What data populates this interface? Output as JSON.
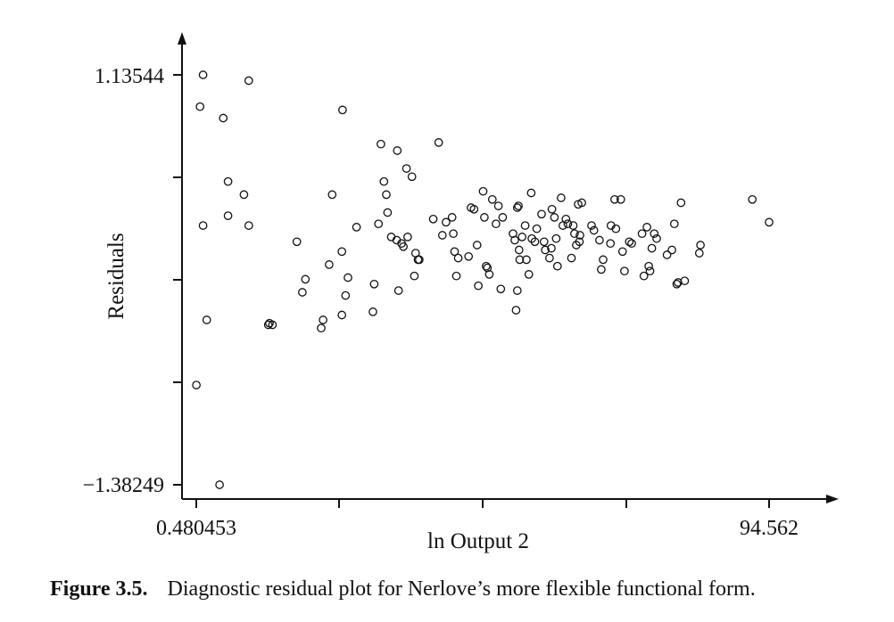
{
  "chart_data": {
    "type": "scatter",
    "xlabel": "ln Output 2",
    "ylabel": "Residuals",
    "x_tick_labels": [
      "0.480453",
      "94.562"
    ],
    "y_tick_labels": [
      "1.13544",
      "−1.38249"
    ],
    "xlim": [
      0.480453,
      94.562
    ],
    "ylim": [
      -1.38249,
      1.13544
    ],
    "marker": "open-circle",
    "marker_color": "#111111",
    "grid": false,
    "legend": "none",
    "points": [
      [
        0.5,
        -0.77
      ],
      [
        1.1,
        0.94
      ],
      [
        1.6,
        1.13544
      ],
      [
        1.6,
        0.21
      ],
      [
        2.2,
        -0.37
      ],
      [
        4.3,
        -1.38249
      ],
      [
        4.9,
        0.87
      ],
      [
        5.7,
        0.48
      ],
      [
        5.7,
        0.27
      ],
      [
        8.3,
        0.4
      ],
      [
        9.1,
        0.21
      ],
      [
        9.1,
        1.1
      ],
      [
        12.3,
        -0.4
      ],
      [
        12.5,
        -0.39
      ],
      [
        13.0,
        -0.4
      ],
      [
        17.0,
        0.11
      ],
      [
        17.9,
        -0.2
      ],
      [
        18.4,
        -0.12
      ],
      [
        21.0,
        -0.42
      ],
      [
        21.3,
        -0.37
      ],
      [
        22.3,
        -0.03
      ],
      [
        22.8,
        0.4
      ],
      [
        24.5,
        0.92
      ],
      [
        24.4,
        0.05
      ],
      [
        24.4,
        -0.34
      ],
      [
        25.0,
        -0.22
      ],
      [
        25.4,
        -0.11
      ],
      [
        26.8,
        0.2
      ],
      [
        29.5,
        -0.32
      ],
      [
        29.7,
        -0.15
      ],
      [
        30.4,
        0.22
      ],
      [
        30.8,
        0.71
      ],
      [
        31.3,
        0.48
      ],
      [
        31.7,
        0.4
      ],
      [
        31.9,
        0.29
      ],
      [
        32.5,
        0.14
      ],
      [
        33.5,
        0.67
      ],
      [
        33.4,
        0.12
      ],
      [
        34.2,
        0.1
      ],
      [
        34.5,
        0.08
      ],
      [
        33.7,
        -0.19
      ],
      [
        35.2,
        0.14
      ],
      [
        35.9,
        0.51
      ],
      [
        35.0,
        0.56
      ],
      [
        36.5,
        0.04
      ],
      [
        36.3,
        -0.1
      ],
      [
        36.9,
        0.0
      ],
      [
        37.1,
        0.0
      ],
      [
        39.4,
        0.25
      ],
      [
        40.3,
        0.72
      ],
      [
        40.9,
        0.15
      ],
      [
        41.5,
        0.23
      ],
      [
        42.5,
        0.26
      ],
      [
        42.7,
        0.16
      ],
      [
        42.9,
        0.05
      ],
      [
        43.2,
        -0.1
      ],
      [
        43.5,
        0.01
      ],
      [
        45.2,
        0.02
      ],
      [
        45.6,
        0.32
      ],
      [
        46.1,
        0.31
      ],
      [
        46.6,
        0.09
      ],
      [
        46.8,
        -0.16
      ],
      [
        47.6,
        0.42
      ],
      [
        47.8,
        0.26
      ],
      [
        48.1,
        -0.04
      ],
      [
        48.3,
        -0.05
      ],
      [
        48.6,
        -0.09
      ],
      [
        49.1,
        0.37
      ],
      [
        49.7,
        0.22
      ],
      [
        50.1,
        0.33
      ],
      [
        50.8,
        0.26
      ],
      [
        50.5,
        -0.18
      ],
      [
        52.5,
        0.16
      ],
      [
        52.8,
        0.12
      ],
      [
        53.2,
        0.32
      ],
      [
        53.4,
        0.33
      ],
      [
        53.5,
        0.06
      ],
      [
        53.6,
        0.0
      ],
      [
        53.0,
        -0.31
      ],
      [
        53.2,
        -0.19
      ],
      [
        54.0,
        0.14
      ],
      [
        54.5,
        0.21
      ],
      [
        54.7,
        0.0
      ],
      [
        55.1,
        -0.09
      ],
      [
        55.5,
        0.41
      ],
      [
        55.6,
        0.13
      ],
      [
        56.1,
        0.11
      ],
      [
        56.4,
        0.19
      ],
      [
        57.2,
        0.28
      ],
      [
        57.6,
        0.11
      ],
      [
        57.8,
        0.06
      ],
      [
        58.5,
        0.01
      ],
      [
        58.8,
        0.07
      ],
      [
        58.9,
        0.31
      ],
      [
        59.3,
        0.26
      ],
      [
        59.6,
        0.13
      ],
      [
        59.8,
        -0.04
      ],
      [
        60.4,
        0.38
      ],
      [
        60.7,
        0.21
      ],
      [
        61.2,
        0.25
      ],
      [
        61.5,
        0.22
      ],
      [
        62.1,
        0.01
      ],
      [
        62.4,
        0.21
      ],
      [
        62.6,
        0.16
      ],
      [
        62.9,
        0.09
      ],
      [
        63.2,
        0.34
      ],
      [
        63.4,
        0.11
      ],
      [
        63.5,
        0.15
      ],
      [
        63.8,
        0.35
      ],
      [
        65.4,
        0.21
      ],
      [
        65.8,
        0.18
      ],
      [
        66.7,
        0.12
      ],
      [
        67.0,
        -0.06
      ],
      [
        67.3,
        0.0
      ],
      [
        68.5,
        0.1
      ],
      [
        68.6,
        0.21
      ],
      [
        69.2,
        0.37
      ],
      [
        69.4,
        0.19
      ],
      [
        70.2,
        0.37
      ],
      [
        70.5,
        0.05
      ],
      [
        70.8,
        -0.07
      ],
      [
        71.6,
        0.11
      ],
      [
        72.0,
        0.1
      ],
      [
        73.7,
        0.16
      ],
      [
        74.0,
        -0.1
      ],
      [
        74.5,
        0.2
      ],
      [
        74.8,
        -0.04
      ],
      [
        75.0,
        -0.07
      ],
      [
        75.3,
        0.07
      ],
      [
        75.7,
        0.16
      ],
      [
        76.1,
        0.13
      ],
      [
        77.8,
        0.03
      ],
      [
        78.6,
        0.06
      ],
      [
        79.0,
        0.22
      ],
      [
        79.4,
        -0.15
      ],
      [
        79.6,
        -0.14
      ],
      [
        80.1,
        0.35
      ],
      [
        80.7,
        -0.13
      ],
      [
        83.1,
        0.04
      ],
      [
        83.3,
        0.09
      ],
      [
        91.8,
        0.37
      ],
      [
        94.562,
        0.23
      ]
    ]
  },
  "caption": {
    "label": "Figure 3.5.",
    "text": "Diagnostic residual plot for Nerlove’s more flexible functional form."
  }
}
